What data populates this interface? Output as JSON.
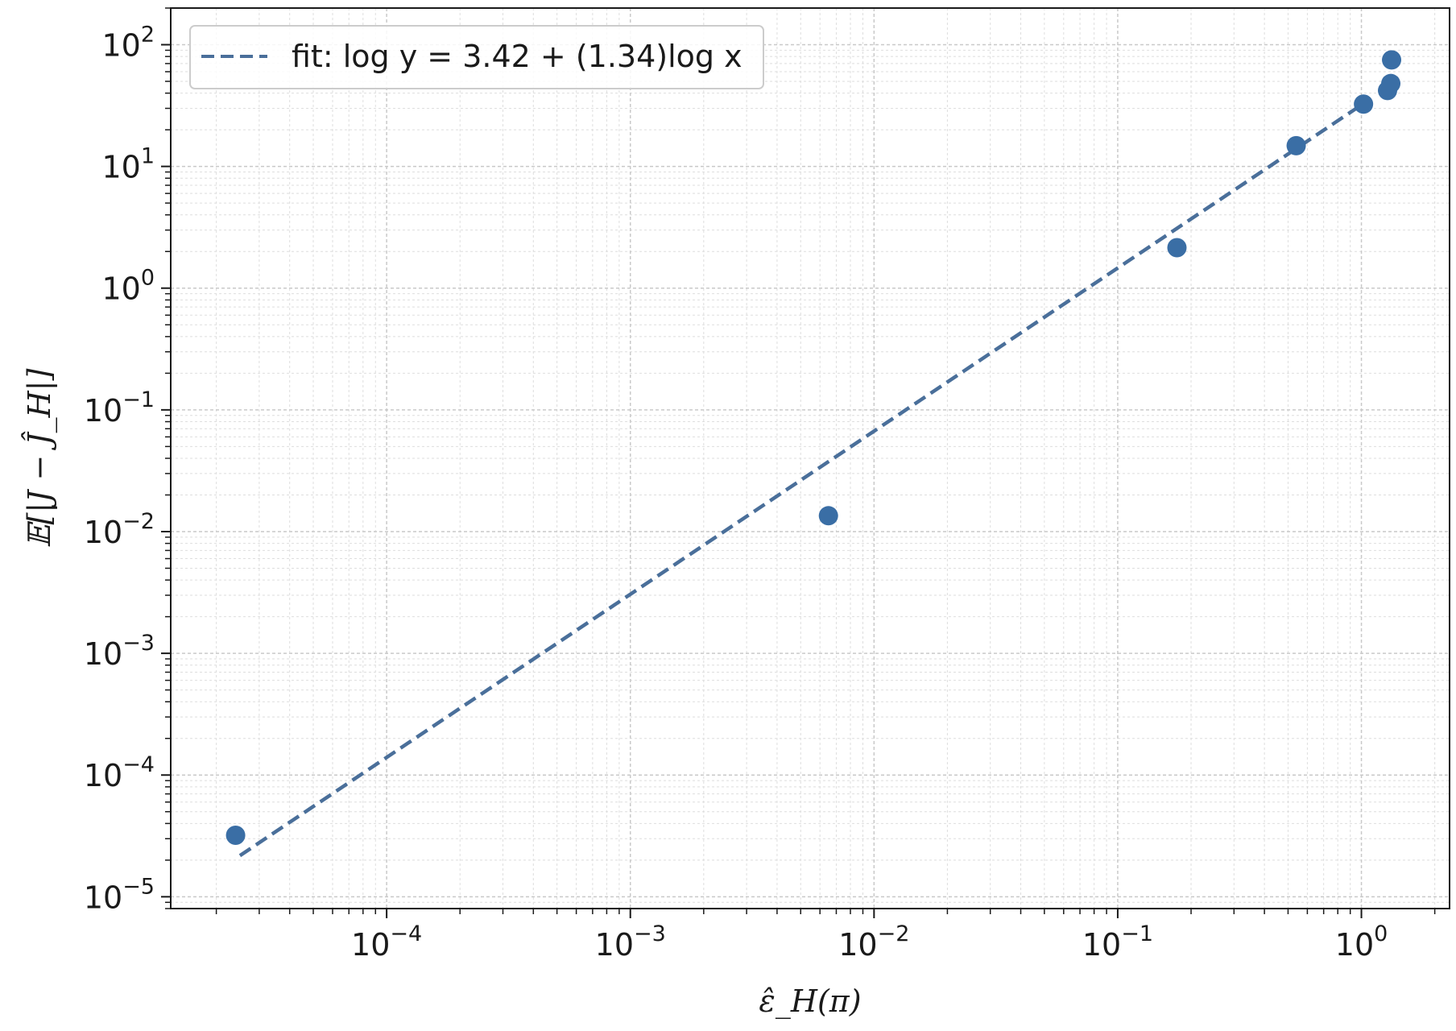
{
  "chart_data": {
    "type": "scatter",
    "xlabel": "ε̂_H(π)",
    "ylabel": "𝔼[|J − Ĵ_H|]",
    "x_scale": "log",
    "y_scale": "log",
    "xlim": [
      1.3e-05,
      2.3
    ],
    "ylim": [
      8e-06,
      200
    ],
    "x_ticks": [
      {
        "value": 0.0001,
        "base": "10",
        "exp": "−4"
      },
      {
        "value": 0.001,
        "base": "10",
        "exp": "−3"
      },
      {
        "value": 0.01,
        "base": "10",
        "exp": "−2"
      },
      {
        "value": 0.1,
        "base": "10",
        "exp": "−1"
      },
      {
        "value": 1,
        "base": "10",
        "exp": "0"
      }
    ],
    "y_ticks": [
      {
        "value": 1e-05,
        "base": "10",
        "exp": "−5"
      },
      {
        "value": 0.0001,
        "base": "10",
        "exp": "−4"
      },
      {
        "value": 0.001,
        "base": "10",
        "exp": "−3"
      },
      {
        "value": 0.01,
        "base": "10",
        "exp": "−2"
      },
      {
        "value": 0.1,
        "base": "10",
        "exp": "−1"
      },
      {
        "value": 1,
        "base": "10",
        "exp": "0"
      },
      {
        "value": 10,
        "base": "10",
        "exp": "1"
      },
      {
        "value": 100,
        "base": "10",
        "exp": "2"
      }
    ],
    "grid": "major and minor",
    "legend_position": "top-left",
    "series": [
      {
        "kind": "scatter",
        "color": "#3a6ea5",
        "x": [
          2.4e-05,
          0.0065,
          0.175,
          0.54,
          1.02,
          1.28,
          1.32,
          1.33
        ],
        "y": [
          3.2e-05,
          0.0135,
          2.15,
          14.8,
          32.5,
          42.0,
          48.0,
          75.0
        ]
      },
      {
        "kind": "fit",
        "name": "fit: log y = 3.42 + (1.34)log x",
        "color": "#4a6f9a",
        "style": "dashed",
        "intercept": 3.42,
        "slope": 1.34,
        "x_range": [
          2.5e-05,
          1.05
        ]
      }
    ]
  }
}
